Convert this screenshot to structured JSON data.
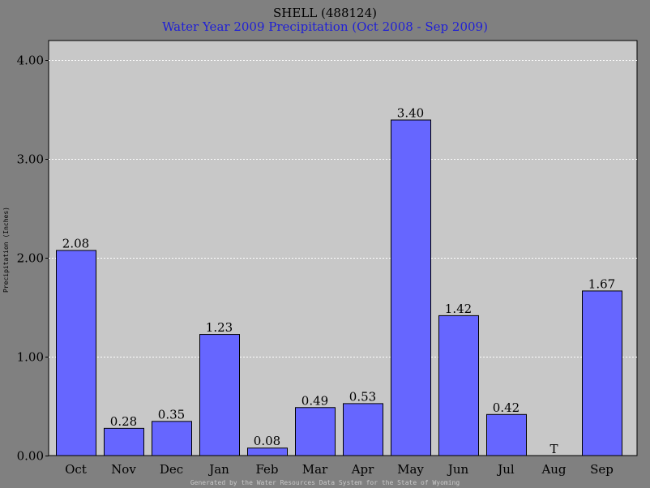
{
  "colors": {
    "background": "#808080",
    "plot_area": "#c8c8c8",
    "bar_fill": "#6666ff",
    "bar_stroke": "#000000",
    "gridline": "#ffffff",
    "title": "#000000",
    "subtitle": "#1f1fd6",
    "footer": "#c8c8c8"
  },
  "footer": "Generated by the Water Resources Data System for the State of Wyoming",
  "chart_data": {
    "type": "bar",
    "title": "SHELL (488124)",
    "subtitle": "Water Year 2009 Precipitation (Oct 2008 - Sep 2009)",
    "xlabel": "",
    "ylabel": "Precipitation (Inches)",
    "categories": [
      "Oct",
      "Nov",
      "Dec",
      "Jan",
      "Feb",
      "Mar",
      "Apr",
      "May",
      "Jun",
      "Jul",
      "Aug",
      "Sep"
    ],
    "values": [
      2.08,
      0.28,
      0.35,
      1.23,
      0.08,
      0.49,
      0.53,
      3.4,
      1.42,
      0.42,
      0,
      1.67
    ],
    "data_labels": [
      "2.08",
      "0.28",
      "0.35",
      "1.23",
      "0.08",
      "0.49",
      "0.53",
      "3.40",
      "1.42",
      "0.42",
      "T",
      "1.67"
    ],
    "ylim": [
      0,
      4.2
    ],
    "yticks": [
      0,
      1,
      2,
      3,
      4
    ],
    "ytick_labels": [
      "0.00",
      "1.00",
      "2.00",
      "3.00",
      "4.00"
    ],
    "grid": true,
    "legend": "none"
  }
}
